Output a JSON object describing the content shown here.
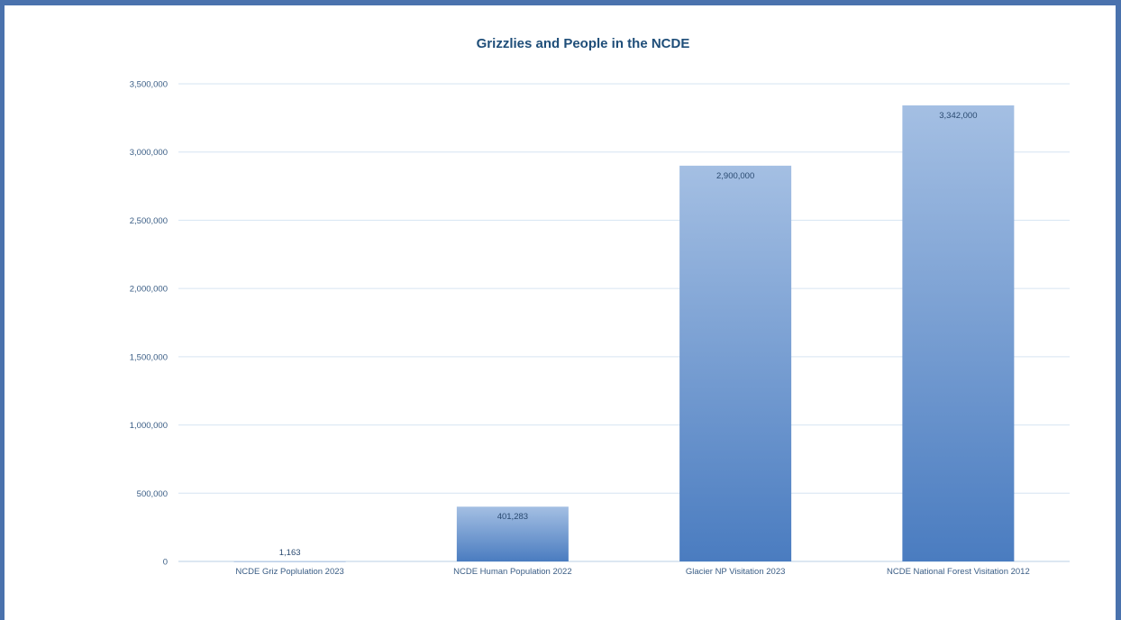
{
  "chart_data": {
    "type": "bar",
    "title": "Grizzlies and People in the NCDE",
    "xlabel": "",
    "ylabel": "",
    "categories": [
      "NCDE Griz Poplulation 2023",
      "NCDE Human Population 2022",
      "Glacier NP Visitation 2023",
      "NCDE National Forest Visitation 2012"
    ],
    "values": [
      1163,
      401283,
      2900000,
      3342000
    ],
    "data_labels": [
      "1,163",
      "401,283",
      "2,900,000",
      "3,342,000"
    ],
    "ylim": [
      0,
      3500000
    ],
    "yticks": [
      0,
      500000,
      1000000,
      1500000,
      2000000,
      2500000,
      3000000,
      3500000
    ],
    "ytick_labels": [
      "0",
      "500,000",
      "1,000,000",
      "1,500,000",
      "2,000,000",
      "2,500,000",
      "3,000,000",
      "3,500,000"
    ],
    "grid": true,
    "legend": "none",
    "colors": {
      "bar_top": "#a4bfe3",
      "bar_bottom": "#4a7cc0",
      "title": "#1f4e79",
      "frame": "#4a72ad"
    }
  }
}
